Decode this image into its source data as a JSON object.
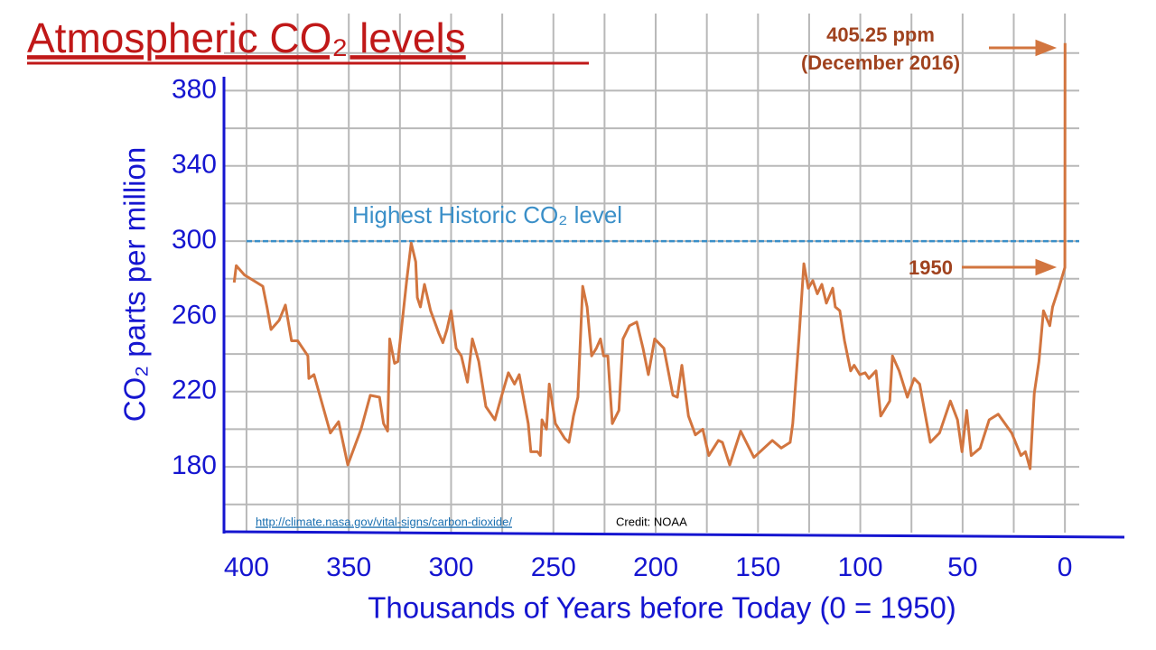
{
  "chart_data": {
    "type": "line",
    "title": "Atmospheric CO₂ levels",
    "x_label": "Thousands of Years before Today  (0 = 1950)",
    "y_label": "CO₂  parts per million",
    "color": "#d2753f",
    "x": [
      406,
      405,
      401,
      395,
      392,
      390,
      388,
      384,
      381,
      378,
      375,
      370,
      369.5,
      367,
      359,
      355,
      350.5,
      344,
      339.5,
      335,
      333,
      331,
      330,
      327.6,
      326,
      321.7,
      319.5,
      317.3,
      316.5,
      315,
      313,
      310,
      306,
      304,
      302,
      300,
      297.5,
      295,
      292,
      289.6,
      286.5,
      283,
      278.6,
      275.5,
      272,
      269,
      266.7,
      262.3,
      261,
      257.8,
      256.4,
      255.6,
      253.4,
      252,
      249,
      244.4,
      242.4,
      240.2,
      238,
      235.7,
      233.5,
      231.3,
      229,
      227,
      225.5,
      223.4,
      221.2,
      218,
      216,
      212.8,
      209.3,
      206.2,
      203.6,
      200.5,
      196,
      191.6,
      189.4,
      187.2,
      184,
      180.6,
      177,
      174,
      169.4,
      167.4,
      163.8,
      158.5,
      152,
      143,
      138.6,
      134.3,
      133,
      130,
      127.6,
      125.4,
      123.2,
      121,
      118.8,
      116.6,
      113.5,
      112.2,
      110,
      107.7,
      104.7,
      103,
      100.2,
      97.6,
      95.8,
      92.3,
      90,
      85.6,
      84.3,
      81,
      77,
      73.7,
      71,
      65.8,
      61.3,
      56,
      52.5,
      50.3,
      48,
      45.8,
      41.4,
      37,
      32.6,
      26,
      21.5,
      19.3,
      17,
      15,
      12.7,
      10.5,
      7.4,
      6,
      3,
      0,
      -0.07
    ],
    "values": [
      278,
      287,
      282,
      278,
      276,
      265,
      253,
      258,
      266,
      247,
      247,
      239,
      227,
      229,
      198,
      204,
      181,
      200,
      218,
      217,
      203,
      199,
      248,
      235,
      236,
      279,
      299,
      289,
      270,
      265,
      277,
      263,
      251,
      246,
      253,
      263,
      243,
      239,
      225,
      248,
      236,
      212,
      205,
      217,
      230,
      224,
      229,
      203,
      188,
      188,
      186,
      205,
      200,
      224,
      203,
      195,
      193,
      207,
      217,
      276,
      265,
      239,
      243,
      248,
      239,
      239,
      203,
      210,
      248,
      255,
      257,
      243,
      229,
      248,
      243,
      218,
      217,
      234,
      207,
      197,
      200,
      186,
      194,
      193,
      181,
      199,
      185,
      194,
      190,
      193,
      203,
      248,
      288,
      275,
      279,
      272,
      277,
      267,
      275,
      265,
      263,
      247,
      231,
      234,
      229,
      230,
      227,
      231,
      207,
      215,
      239,
      231,
      217,
      227,
      224,
      193,
      198,
      215,
      205,
      188,
      210,
      186,
      190,
      205,
      208,
      198,
      186,
      188,
      179,
      219,
      236,
      263,
      255,
      265,
      275,
      286,
      405.25
    ],
    "xlim": [
      411,
      -7
    ],
    "ylim": [
      145,
      421
    ],
    "xticks": [
      400,
      350,
      300,
      250,
      200,
      150,
      100,
      50,
      0
    ],
    "yticks": [
      180,
      220,
      260,
      300,
      340,
      380
    ],
    "xgrid": [
      400,
      375,
      350,
      325,
      300,
      275,
      250,
      225,
      200,
      175,
      150,
      125,
      100,
      75,
      50,
      25,
      0
    ],
    "ygrid": [
      160,
      180,
      200,
      220,
      240,
      260,
      280,
      300,
      320,
      340,
      360,
      380,
      400
    ],
    "grid": true,
    "reference_line": {
      "value": 300,
      "label": "Highest Historic CO₂ level",
      "color": "#3a8fc8"
    },
    "annotations": [
      "405.25 ppm",
      "(December 2016)",
      "1950"
    ],
    "source": "http://climate.nasa.gov/vital-signs/carbon-dioxide/",
    "credit": "Credit: NOAA"
  }
}
